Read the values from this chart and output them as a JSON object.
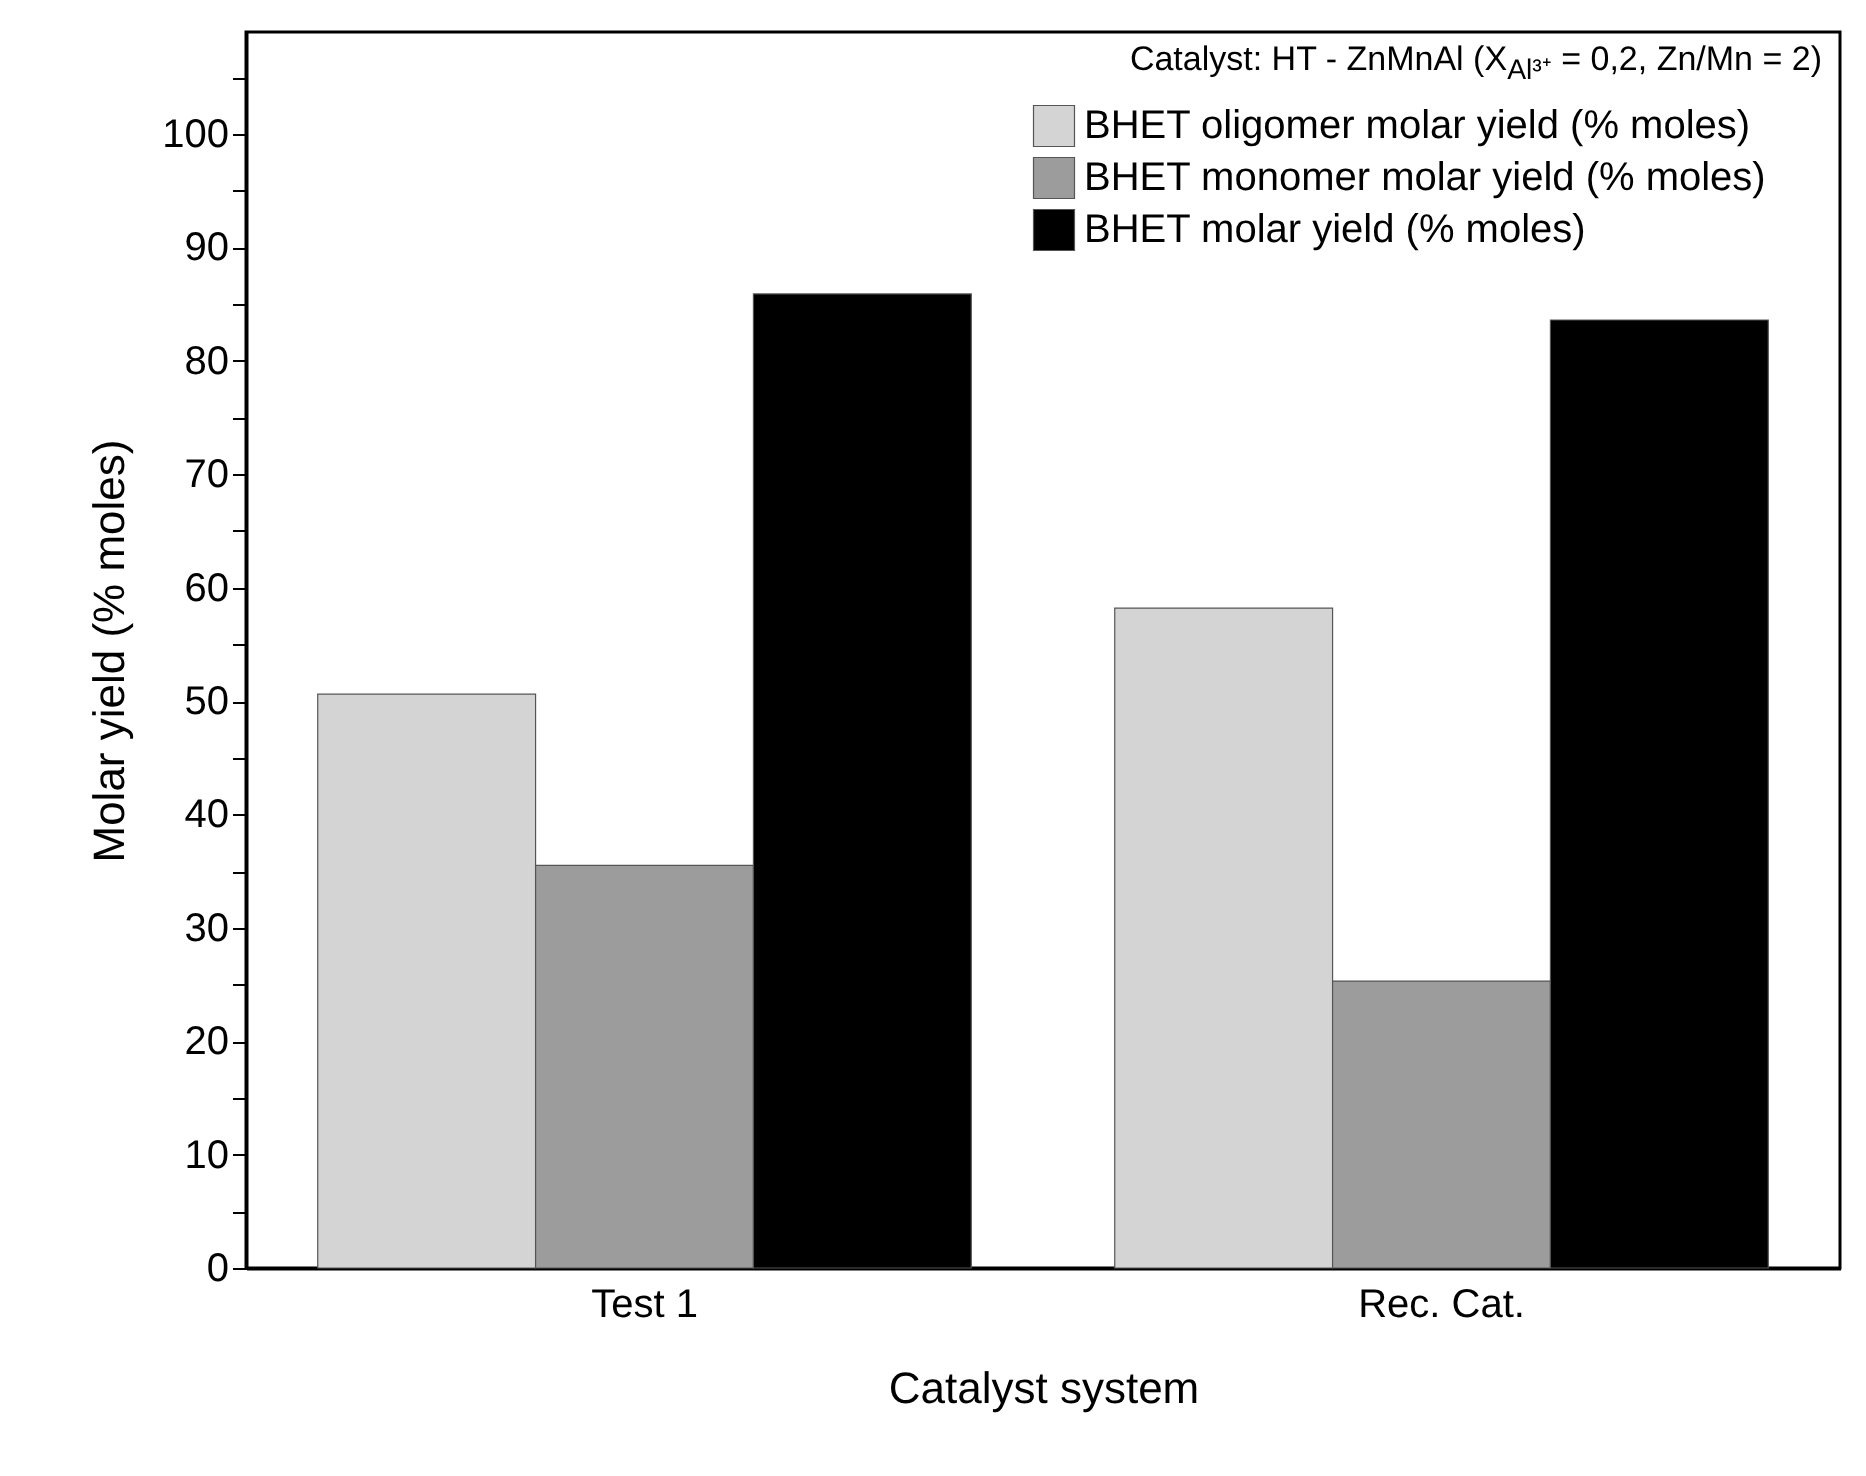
{
  "chart_data": {
    "type": "bar",
    "xlabel": "Catalyst system",
    "ylabel": "Molar yield (% moles)",
    "legend_title": "Catalyst: HT - ZnMnAl (X$_{Al³⁺}$ = 0,2, Zn/Mn = 2)",
    "legend": "top right",
    "categories": [
      "Test 1",
      "Rec. Cat."
    ],
    "series": [
      {
        "name": "BHET oligomer molar yield (% moles)",
        "color": "#d4d4d4",
        "values": [
          50.6,
          58.2
        ]
      },
      {
        "name": "BHET monomer molar yield (% moles)",
        "color": "#9c9c9c",
        "values": [
          35.5,
          25.3
        ]
      },
      {
        "name": "BHET molar yield (% moles)",
        "color": "#000000",
        "values": [
          85.9,
          83.6
        ]
      }
    ],
    "ylim": [
      0,
      109
    ],
    "yticks": [
      0,
      {
        "value": 5,
        "label": null
      },
      10,
      {
        "value": 15,
        "label": null
      },
      20,
      {
        "value": 25,
        "label": null
      },
      30,
      {
        "value": 35,
        "label": null
      },
      40,
      {
        "value": 45,
        "label": null
      },
      50,
      {
        "value": 55,
        "label": null
      },
      60,
      {
        "value": 65,
        "label": null
      },
      70,
      {
        "value": 75,
        "label": null
      },
      80,
      {
        "value": 85,
        "label": null
      },
      90,
      {
        "value": 95,
        "label": null
      },
      100,
      {
        "value": 105,
        "label": null
      }
    ]
  }
}
